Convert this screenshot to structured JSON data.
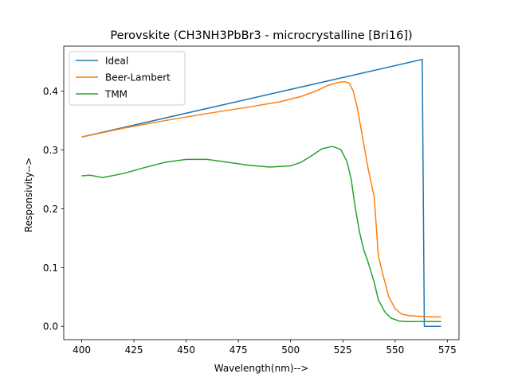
{
  "chart_data": {
    "type": "line",
    "title": "Perovskite (CH3NH3PbBr3 - microcrystalline [Bri16])",
    "xlabel": "Wavelength(nm)-->",
    "ylabel": "Responsivity-->",
    "xlim": [
      391.4,
      580.6
    ],
    "ylim": [
      -0.0227,
      0.4766
    ],
    "xticks": [
      400,
      425,
      450,
      475,
      500,
      525,
      550,
      575
    ],
    "xtick_labels": [
      "400",
      "425",
      "450",
      "475",
      "500",
      "525",
      "550",
      "575"
    ],
    "yticks": [
      0.0,
      0.1,
      0.2,
      0.3,
      0.4
    ],
    "ytick_labels": [
      "0.0",
      "0.1",
      "0.2",
      "0.3",
      "0.4"
    ],
    "grid": false,
    "legend_position": "upper left",
    "series": [
      {
        "name": "Ideal",
        "color": "#1f77b4",
        "x": [
          400,
          563,
          564,
          572
        ],
        "y": [
          0.322,
          0.454,
          0.0,
          0.0
        ]
      },
      {
        "name": "Beer-Lambert",
        "color": "#ff7f0e",
        "x": [
          400,
          420,
          440,
          460,
          480,
          495,
          505,
          512,
          518,
          523,
          526,
          528,
          530,
          532,
          534,
          537,
          540,
          542,
          544,
          547,
          550,
          553,
          557,
          562,
          567,
          572
        ],
        "y": [
          0.322,
          0.337,
          0.35,
          0.362,
          0.373,
          0.382,
          0.391,
          0.4,
          0.41,
          0.415,
          0.416,
          0.414,
          0.4,
          0.37,
          0.33,
          0.27,
          0.22,
          0.12,
          0.09,
          0.05,
          0.03,
          0.021,
          0.018,
          0.017,
          0.016,
          0.016
        ]
      },
      {
        "name": "TMM",
        "color": "#2ca02c",
        "x": [
          400,
          404,
          410,
          420,
          430,
          440,
          450,
          460,
          470,
          480,
          490,
          500,
          505,
          510,
          515,
          520,
          524,
          527,
          529,
          531,
          533,
          535,
          537,
          540,
          542,
          545,
          548,
          552,
          556,
          562,
          572
        ],
        "y": [
          0.256,
          0.257,
          0.253,
          0.26,
          0.27,
          0.279,
          0.284,
          0.284,
          0.279,
          0.274,
          0.271,
          0.273,
          0.279,
          0.29,
          0.302,
          0.306,
          0.301,
          0.28,
          0.25,
          0.2,
          0.16,
          0.13,
          0.11,
          0.075,
          0.045,
          0.025,
          0.014,
          0.009,
          0.008,
          0.008,
          0.008
        ]
      }
    ]
  }
}
